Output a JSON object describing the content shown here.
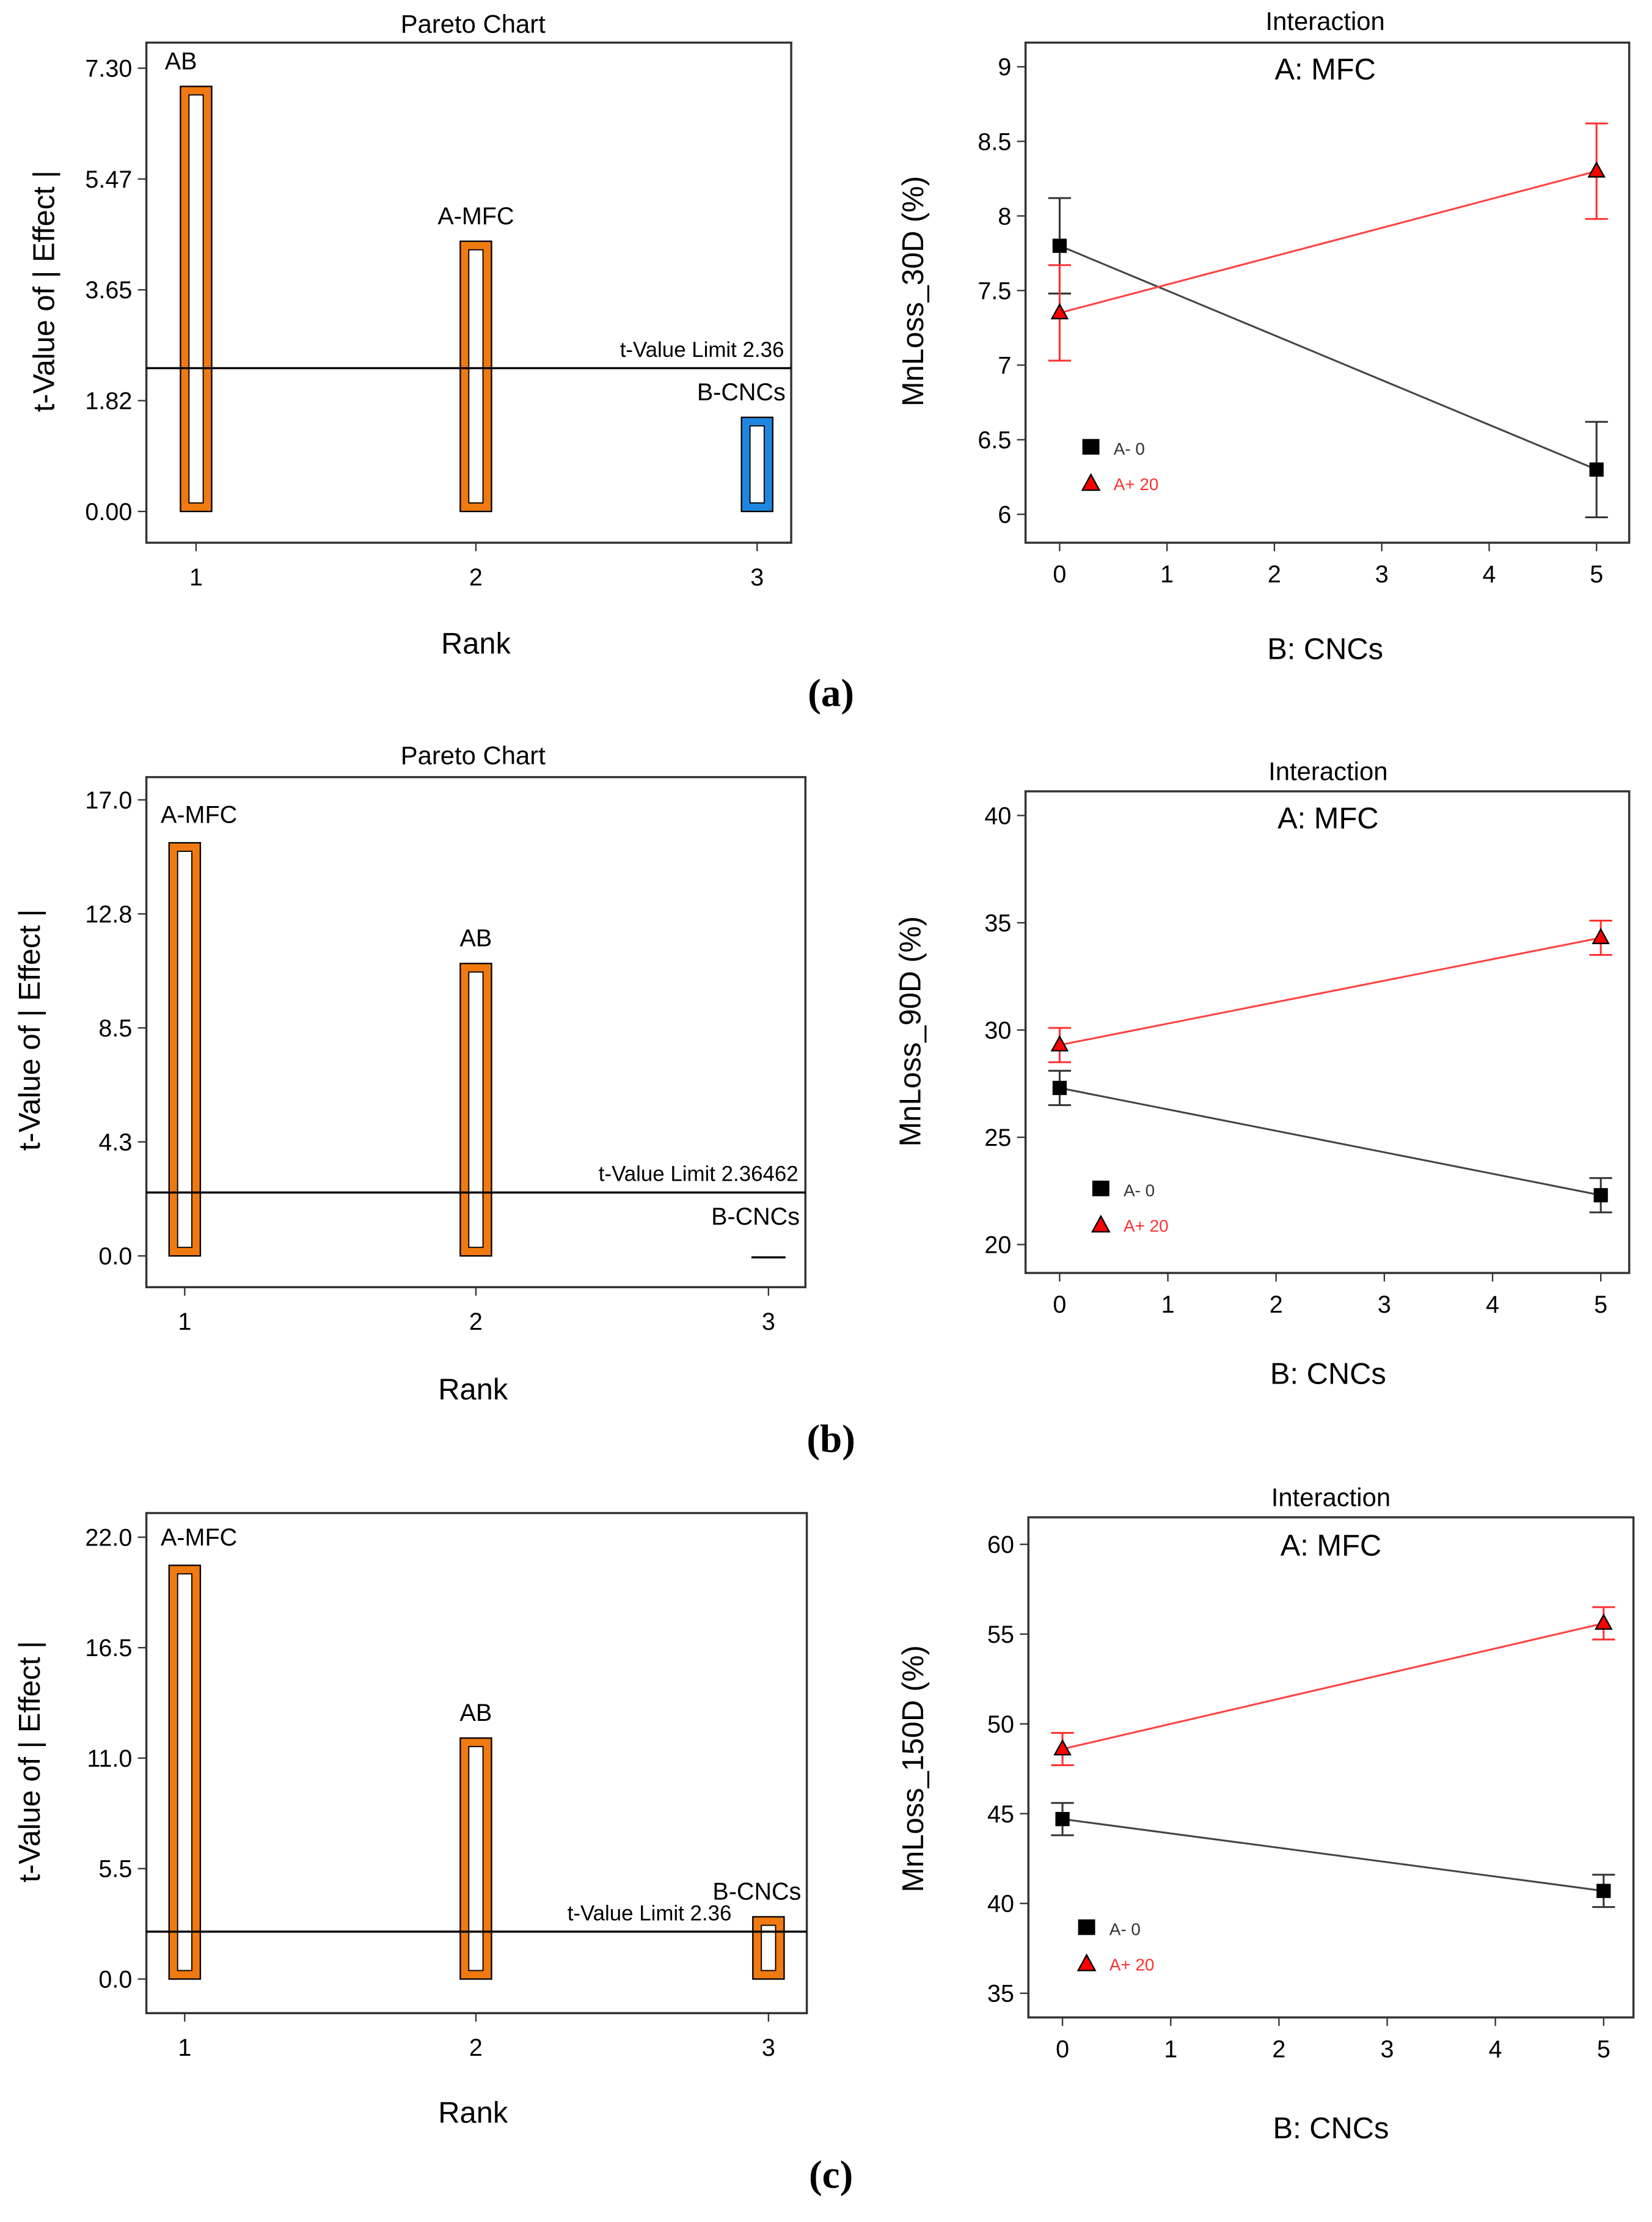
{
  "panel_labels": [
    "(a)",
    "(b)",
    "(c)"
  ],
  "chart_data": [
    {
      "type": "bar",
      "panel": "a",
      "title": "Pareto Chart",
      "xlabel": "Rank",
      "ylabel": "t-Value of | Effect |",
      "ylim": [
        0,
        7.3
      ],
      "yticks": [
        "0.00",
        "1.82",
        "3.65",
        "5.47",
        "7.30"
      ],
      "categories": [
        "1",
        "2",
        "3"
      ],
      "bar_labels": [
        "AB",
        "A-MFC",
        "B-CNCs"
      ],
      "values": [
        7.0,
        4.45,
        1.55
      ],
      "bar_colors": [
        "#f07a10",
        "#f07a10",
        "#1f86e0"
      ],
      "limit": {
        "label": "t-Value Limit 2.36",
        "value": 2.36
      }
    },
    {
      "type": "line",
      "panel": "a",
      "title": "Interaction",
      "subtitle": "A: MFC",
      "xlabel": "B: CNCs",
      "ylabel": "MnLoss_30D (%)",
      "ylim": [
        6,
        9
      ],
      "yticks": [
        "6",
        "6.5",
        "7",
        "7.5",
        "8",
        "8.5",
        "9"
      ],
      "xlim": [
        0,
        5
      ],
      "xticks": [
        "0",
        "1",
        "2",
        "3",
        "4",
        "5"
      ],
      "series": [
        {
          "name": "A- 0",
          "color": "#000000",
          "x": [
            0,
            5
          ],
          "y": [
            7.8,
            6.3
          ],
          "err": [
            0.32,
            0.32
          ]
        },
        {
          "name": "A+ 20",
          "color": "#ff2020",
          "x": [
            0,
            5
          ],
          "y": [
            7.35,
            8.3
          ],
          "err": [
            0.32,
            0.32
          ]
        }
      ]
    },
    {
      "type": "bar",
      "panel": "b",
      "title": "Pareto Chart",
      "xlabel": "Rank",
      "ylabel": "t-Value of | Effect |",
      "ylim": [
        0,
        17.0
      ],
      "yticks": [
        "0.0",
        "4.3",
        "8.5",
        "12.8",
        "17.0"
      ],
      "categories": [
        "1",
        "2",
        "3"
      ],
      "bar_labels": [
        "A-MFC",
        "AB",
        "B-CNCs"
      ],
      "values": [
        15.4,
        10.9,
        0.05
      ],
      "bar_colors": [
        "#f07a10",
        "#f07a10",
        "#f07a10"
      ],
      "limit": {
        "label": "t-Value Limit 2.36462",
        "value": 2.36462
      }
    },
    {
      "type": "line",
      "panel": "b",
      "title": "Interaction",
      "subtitle": "A: MFC",
      "xlabel": "B: CNCs",
      "ylabel": "MnLoss_90D (%)",
      "ylim": [
        20,
        40
      ],
      "yticks": [
        "20",
        "25",
        "30",
        "35",
        "40"
      ],
      "xlim": [
        0,
        5
      ],
      "xticks": [
        "0",
        "1",
        "2",
        "3",
        "4",
        "5"
      ],
      "series": [
        {
          "name": "A- 0",
          "color": "#000000",
          "x": [
            0,
            5
          ],
          "y": [
            27.3,
            22.3
          ],
          "err": [
            0.8,
            0.8
          ]
        },
        {
          "name": "A+ 20",
          "color": "#ff2020",
          "x": [
            0,
            5
          ],
          "y": [
            29.3,
            34.3
          ],
          "err": [
            0.8,
            0.8
          ]
        }
      ]
    },
    {
      "type": "bar",
      "panel": "c",
      "title": "",
      "xlabel": "Rank",
      "ylabel": "t-Value of | Effect |",
      "ylim": [
        0,
        22.0
      ],
      "yticks": [
        "0.0",
        "5.5",
        "11.0",
        "16.5",
        "22.0"
      ],
      "categories": [
        "1",
        "2",
        "3"
      ],
      "bar_labels": [
        "A-MFC",
        "AB",
        "B-CNCs"
      ],
      "values": [
        20.6,
        12.0,
        3.1
      ],
      "bar_colors": [
        "#f07a10",
        "#f07a10",
        "#f07a10"
      ],
      "limit": {
        "label": "t-Value Limit 2.36",
        "value": 2.36
      }
    },
    {
      "type": "line",
      "panel": "c",
      "title": "Interaction",
      "subtitle": "A: MFC",
      "xlabel": "B: CNCs",
      "ylabel": "MnLoss_150D (%)",
      "ylim": [
        35,
        60
      ],
      "yticks": [
        "35",
        "40",
        "45",
        "50",
        "55",
        "60"
      ],
      "xlim": [
        0,
        5
      ],
      "xticks": [
        "0",
        "1",
        "2",
        "3",
        "4",
        "5"
      ],
      "series": [
        {
          "name": "A- 0",
          "color": "#000000",
          "x": [
            0,
            5
          ],
          "y": [
            44.7,
            40.7
          ],
          "err": [
            0.9,
            0.9
          ]
        },
        {
          "name": "A+ 20",
          "color": "#ff2020",
          "x": [
            0,
            5
          ],
          "y": [
            48.6,
            55.6
          ],
          "err": [
            0.9,
            0.9
          ]
        }
      ]
    }
  ]
}
